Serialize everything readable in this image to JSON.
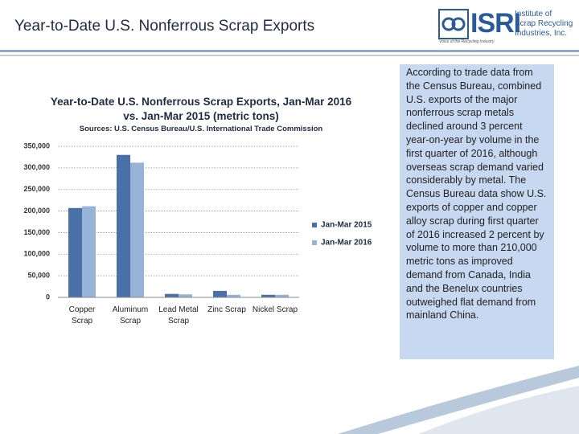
{
  "slide_title": "Year-to-Date U.S. Nonferrous Scrap Exports",
  "logo": {
    "acronym": "ISRI",
    "name_lines": [
      "Institute of",
      "Scrap Recycling",
      "Industries, Inc."
    ],
    "tagline": "Voice of the Recycling Industry"
  },
  "body_text": "According to trade data from the Census Bureau, combined U.S. exports of the major nonferrous scrap metals declined around 3 percent year-on-year by volume in the first quarter of 2016, although overseas scrap demand varied considerably by metal. The Census Bureau data show U.S. exports of copper and copper alloy scrap during first quarter of 2016 increased 2 percent by volume to more than 210,000 metric tons as improved demand from Canada, India and the Benelux countries outweighed flat demand from mainland China.",
  "chart_data": {
    "type": "bar",
    "title": "Year-to-Date U.S. Nonferrous Scrap Exports, Jan-Mar 2016 vs. Jan-Mar 2015 (metric tons)",
    "subtitle": "Sources: U.S. Census Bureau/U.S. International Trade Commission",
    "categories": [
      "Copper Scrap",
      "Aluminum Scrap",
      "Lead Metal Scrap",
      "Zinc Scrap",
      "Nickel Scrap"
    ],
    "series": [
      {
        "name": "Jan-Mar 2015",
        "color": "#4a70a8",
        "values": [
          207000,
          330000,
          8000,
          15000,
          6000
        ]
      },
      {
        "name": "Jan-Mar 2016",
        "color": "#98b3d8",
        "values": [
          211000,
          312000,
          7000,
          6000,
          6000
        ]
      }
    ],
    "ylim": [
      0,
      350000
    ],
    "yticks": [
      0,
      {
        "value": 50000,
        "label": "50,000"
      },
      {
        "value": 100000,
        "label": "100,000"
      },
      {
        "value": 150000,
        "label": "150,000"
      },
      {
        "value": 200000,
        "label": "200,000"
      },
      {
        "value": 250000,
        "label": "250,000"
      },
      {
        "value": 300000,
        "label": "300,000"
      },
      {
        "value": 350000,
        "label": "350,000"
      }
    ],
    "grid": true,
    "legend": "right"
  }
}
